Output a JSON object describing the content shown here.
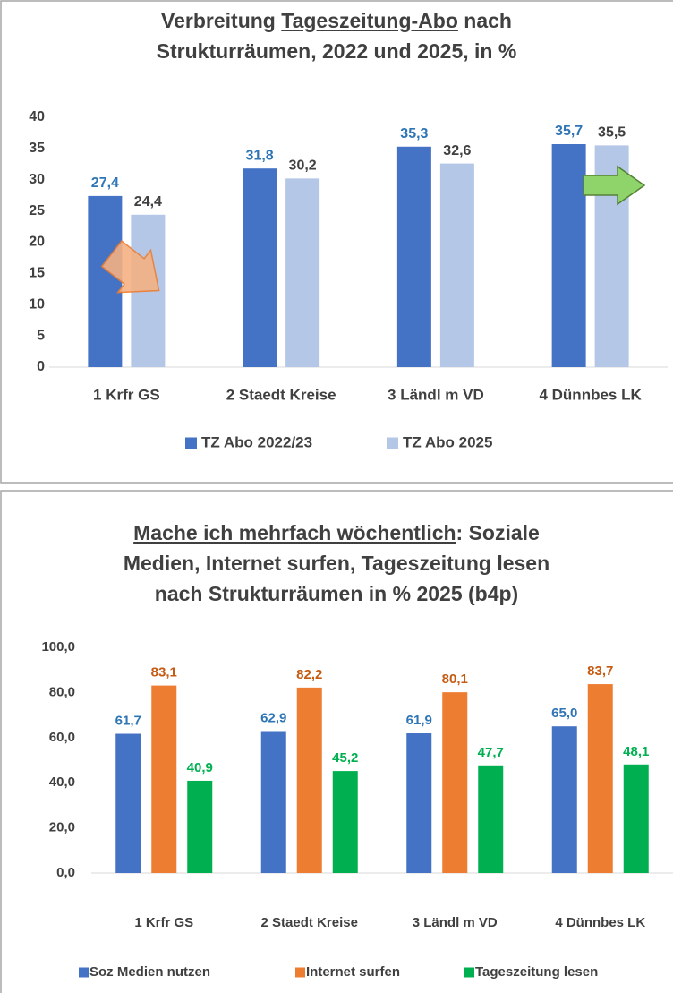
{
  "chart_data": [
    {
      "type": "bar",
      "title": [
        "Verbreitung ",
        "Tageszeitung-Abo",
        " nach",
        "Strukturräumen, 2022 und 2025, in %"
      ],
      "categories": [
        "1 Krfr GS",
        "2 Staedt Kreise",
        "3 Ländl m VD",
        "4 Dünnbes LK"
      ],
      "series": [
        {
          "name": "TZ Abo 2022/23",
          "color": "#4472c4",
          "label_color": "#2e75b6",
          "values": [
            27.4,
            31.8,
            35.3,
            35.7
          ],
          "value_labels": [
            "27,4",
            "31,8",
            "35,3",
            "35,7"
          ]
        },
        {
          "name": "TZ Abo 2025",
          "color": "#b4c7e7",
          "label_color": "#404040",
          "values": [
            24.4,
            30.2,
            32.6,
            35.5
          ],
          "value_labels": [
            "24,4",
            "30,2",
            "32,6",
            "35,5"
          ]
        }
      ],
      "ylim": [
        0,
        40
      ],
      "yticks": [
        0,
        5,
        10,
        15,
        20,
        25,
        30,
        35,
        40
      ],
      "grid": false,
      "legend": "bottom"
    },
    {
      "type": "bar",
      "title": [
        "Mache ich mehrfach wöchentlich",
        ": Soziale",
        "Medien, Internet surfen, Tageszeitung lesen",
        "nach Strukturräumen in % 2025 (b4p)"
      ],
      "categories": [
        "1 Krfr GS",
        "2 Staedt Kreise",
        "3 Ländl m VD",
        "4 Dünnbes LK"
      ],
      "series": [
        {
          "name": "Soz Medien nutzen",
          "color": "#4472c4",
          "label_color": "#2e75b6",
          "values": [
            61.7,
            62.9,
            61.9,
            65.0
          ],
          "value_labels": [
            "61,7",
            "62,9",
            "61,9",
            "65,0"
          ]
        },
        {
          "name": "Internet surfen",
          "color": "#ed7d31",
          "label_color": "#c55a11",
          "values": [
            83.1,
            82.2,
            80.1,
            83.7
          ],
          "value_labels": [
            "83,1",
            "82,2",
            "80,1",
            "83,7"
          ]
        },
        {
          "name": "Tageszeitung lesen",
          "color": "#00b050",
          "label_color": "#00b050",
          "values": [
            40.9,
            45.2,
            47.7,
            48.1
          ],
          "value_labels": [
            "40,9",
            "45,2",
            "47,7",
            "48,1"
          ]
        }
      ],
      "ylim": [
        0,
        100
      ],
      "yticks": [
        {
          "value": 0,
          "label": "0,0"
        },
        {
          "value": 20,
          "label": "20,0"
        },
        {
          "value": 40,
          "label": "40,0"
        },
        {
          "value": 60,
          "label": "60,0"
        },
        {
          "value": 80,
          "label": "80,0"
        },
        {
          "value": 100,
          "label": "100,0"
        }
      ],
      "grid": false,
      "legend": "bottom"
    }
  ]
}
